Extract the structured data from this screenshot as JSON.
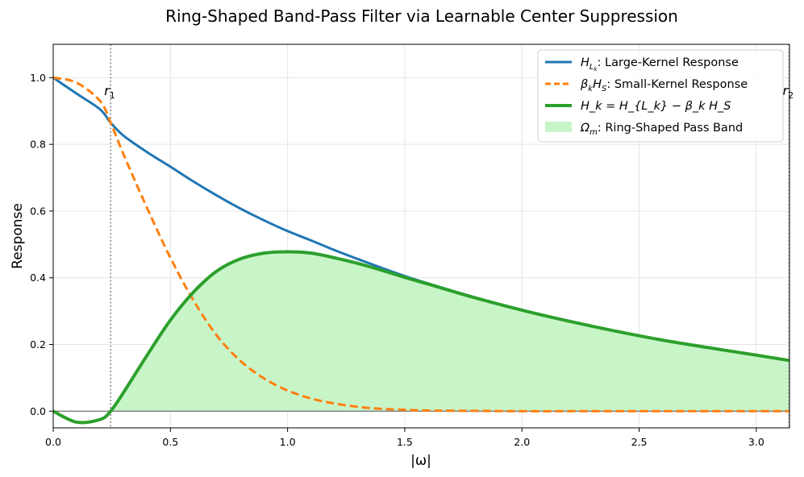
{
  "chart_data": {
    "type": "line",
    "title": "Ring-Shaped Band-Pass Filter via Learnable Center Suppression",
    "xlabel": "|ω|",
    "ylabel": "Response",
    "xlim": [
      0,
      3.1416
    ],
    "ylim": [
      -0.05,
      1.1
    ],
    "grid": true,
    "legend_position": "upper-right",
    "x_ticks": [
      "0.0",
      "0.5",
      "1.0",
      "1.5",
      "2.0",
      "2.5",
      "3.0"
    ],
    "x_tick_values": [
      0,
      0.5,
      1.0,
      1.5,
      2.0,
      2.5,
      3.0
    ],
    "y_ticks": [
      "0.0",
      "0.2",
      "0.4",
      "0.6",
      "0.8",
      "1.0"
    ],
    "y_tick_values": [
      0,
      0.2,
      0.4,
      0.6,
      0.8,
      1.0
    ],
    "markers": [
      {
        "label": "r1",
        "x": 0.245
      },
      {
        "label": "r2",
        "x": 3.1416
      }
    ],
    "x": [
      0.0,
      0.1,
      0.2,
      0.245,
      0.3,
      0.4,
      0.5,
      0.6,
      0.7,
      0.8,
      0.9,
      1.0,
      1.1,
      1.2,
      1.3,
      1.4,
      1.5,
      1.6,
      1.8,
      2.0,
      2.2,
      2.4,
      2.6,
      2.8,
      3.0,
      3.1416
    ],
    "series": [
      {
        "name": "H_{L_k}: Large-Kernel Response",
        "color": "#1f77b4",
        "style": "solid",
        "values": [
          1.0,
          0.952,
          0.905,
          0.865,
          0.826,
          0.777,
          0.733,
          0.688,
          0.646,
          0.607,
          0.572,
          0.54,
          0.512,
          0.483,
          0.456,
          0.43,
          0.405,
          0.383,
          0.341,
          0.303,
          0.27,
          0.24,
          0.213,
          0.19,
          0.168,
          0.152
        ]
      },
      {
        "name": "β_k H_S: Small-Kernel Response",
        "color": "#ff7f0e",
        "style": "dashed",
        "values": [
          1.0,
          0.985,
          0.93,
          0.865,
          0.77,
          0.61,
          0.46,
          0.33,
          0.225,
          0.15,
          0.098,
          0.062,
          0.038,
          0.023,
          0.013,
          0.007,
          0.004,
          0.002,
          0.001,
          0.0,
          0.0,
          0.0,
          0.0,
          0.0,
          0.0,
          0.0
        ]
      },
      {
        "name": "H_k = H_{L_k} − β_k H_S",
        "color": "#2ca02c",
        "style": "solid",
        "values": [
          0.0,
          -0.033,
          -0.025,
          0.0,
          0.056,
          0.167,
          0.273,
          0.358,
          0.421,
          0.457,
          0.474,
          0.478,
          0.474,
          0.46,
          0.443,
          0.423,
          0.401,
          0.381,
          0.34,
          0.303,
          0.27,
          0.24,
          0.213,
          0.19,
          0.168,
          0.152
        ]
      }
    ],
    "fill": {
      "name": "Ω_m: Ring-Shaped Pass Band",
      "color": "#c8f5c8",
      "under_series": 2
    },
    "legend": [
      {
        "main": "H",
        "sub": "L",
        "subsub": "k",
        "rest": ": Large-Kernel Response"
      },
      {
        "main": "β",
        "sub": "k",
        "main2": "H",
        "sub2": "S",
        "rest": ": Small-Kernel Response"
      },
      {
        "eq": "H_k = H_{L_k} − β_k H_S"
      },
      {
        "main": "Ω",
        "sub": "m",
        "rest": ": Ring-Shaped Pass Band"
      }
    ]
  }
}
